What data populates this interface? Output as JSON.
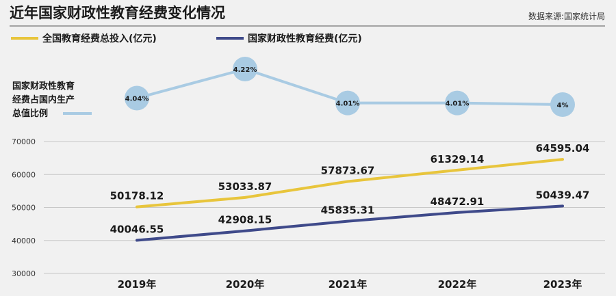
{
  "title": "近年国家财政性教育经费变化情况",
  "source": "数据来源:国家统计局",
  "legend": [
    {
      "label": "全国教育经费总投入(亿元)",
      "color": "#e8c53c"
    },
    {
      "label": "国家财政性教育经费(亿元)",
      "color": "#3f4a8a"
    }
  ],
  "ratio_label": [
    "国家财政性教育",
    "经费占国内生产",
    "总值比例"
  ],
  "colors": {
    "total": "#e8c53c",
    "fiscal": "#3f4a8a",
    "ratio": "#a9cbe3",
    "grid": "#c8c8c8",
    "divider": "#555555"
  },
  "chart_data": {
    "type": "line",
    "categories": [
      "2019年",
      "2020年",
      "2021年",
      "2022年",
      "2023年"
    ],
    "y_ticks": [
      "70000",
      "60000",
      "50000",
      "40000",
      "30000"
    ],
    "ylim": [
      30000,
      70000
    ],
    "series": [
      {
        "name": "全国教育经费总投入(亿元)",
        "values": [
          50178.12,
          53033.87,
          57873.67,
          61329.14,
          64595.04
        ],
        "labels": [
          "50178.12",
          "53033.87",
          "57873.67",
          "61329.14",
          "64595.04"
        ]
      },
      {
        "name": "国家财政性教育经费(亿元)",
        "values": [
          40046.55,
          42908.15,
          45835.31,
          48472.91,
          50439.47
        ],
        "labels": [
          "40046.55",
          "42908.15",
          "45835.31",
          "48472.91",
          "50439.47"
        ]
      }
    ],
    "ratio_series": {
      "name": "国家财政性教育经费占国内生产总值比例",
      "values": [
        4.04,
        4.22,
        4.01,
        4.01,
        4.0
      ],
      "labels": [
        "4.04%",
        "4.22%",
        "4.01%",
        "4.01%",
        "4%"
      ]
    }
  }
}
